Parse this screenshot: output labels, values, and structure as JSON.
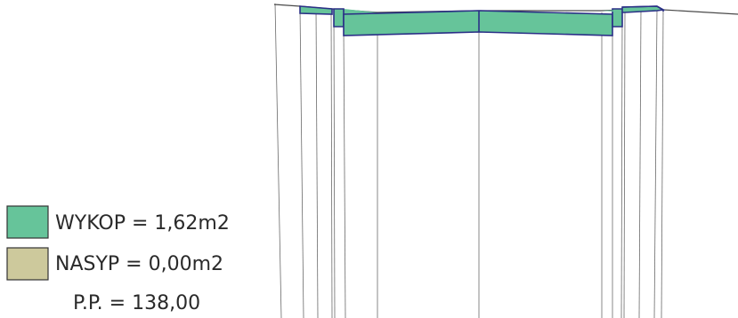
{
  "legend": {
    "cut": {
      "label": "WYKOP = 1,62m2",
      "color": "#66c49a"
    },
    "fill": {
      "label": "NASYP = 0,00m2",
      "color": "#cdc99c"
    },
    "station": "P.P. = 138,00"
  },
  "colors": {
    "outline": "#2a2f86",
    "terrain": "#4a4a4a",
    "vertical_lines": "#6a6a6a",
    "legend_border": "#333333"
  }
}
